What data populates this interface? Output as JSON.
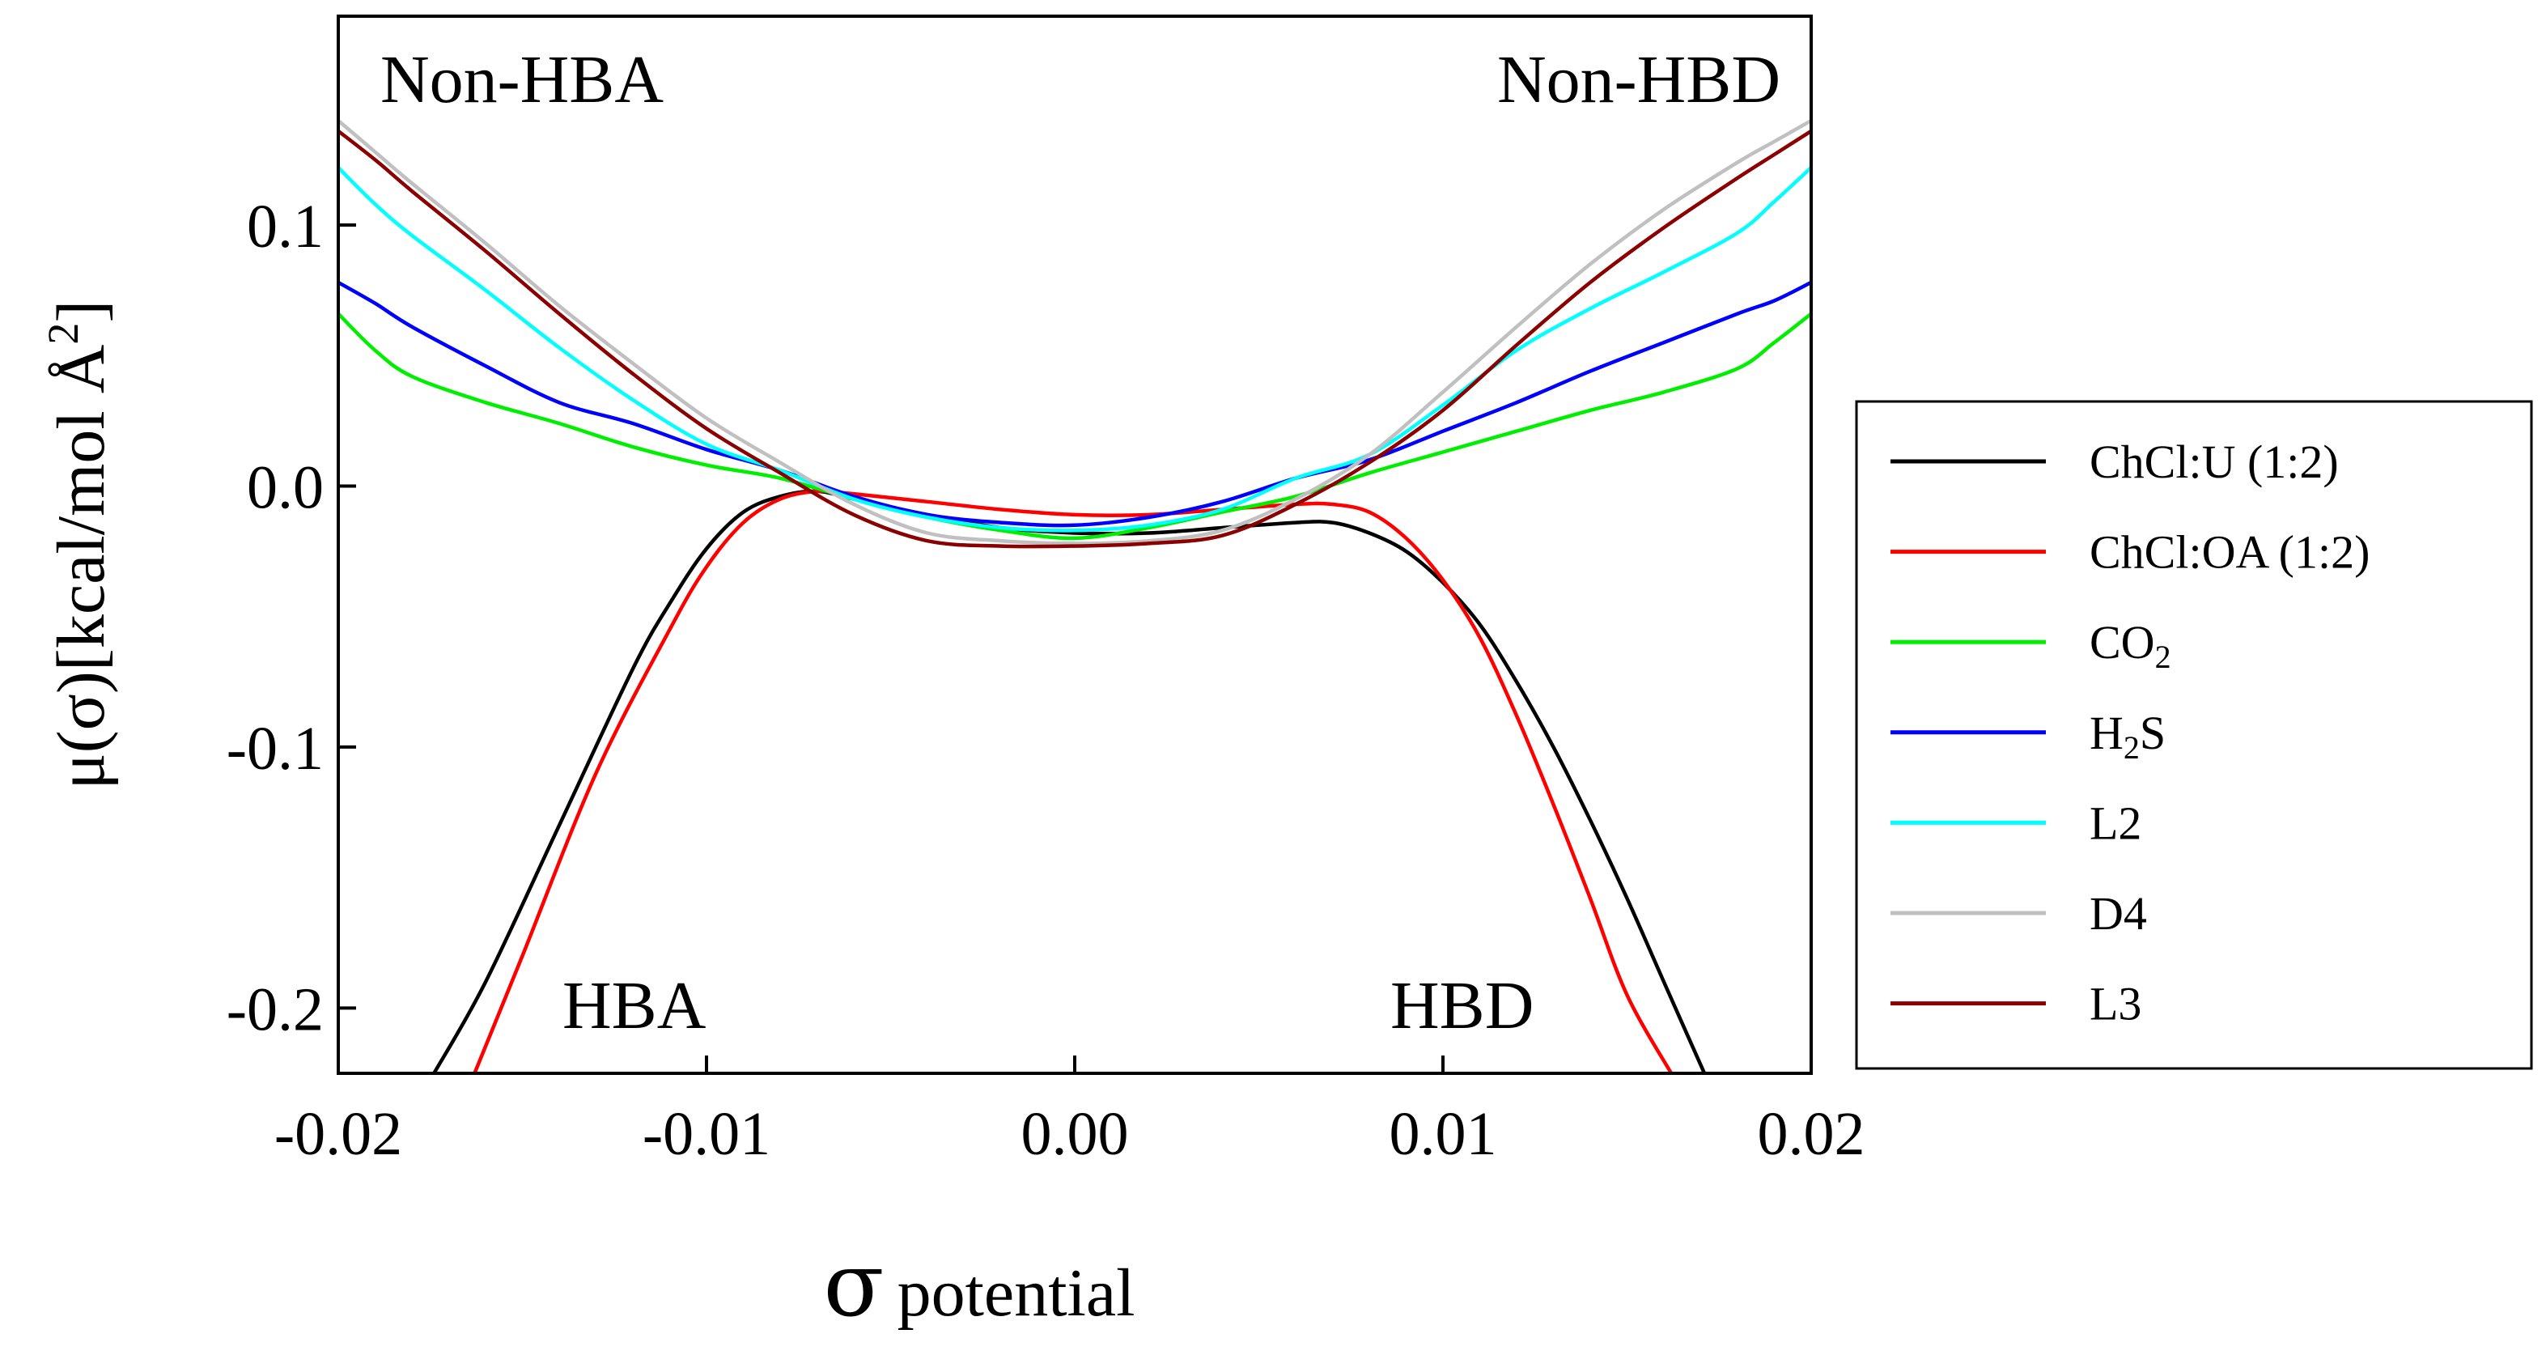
{
  "chart_data": {
    "type": "line",
    "xlabel_symbol": "σ",
    "xlabel_text": "potential",
    "ylabel": "μ(σ)[kcal/mol Å",
    "ylabel_sup": "2",
    "ylabel_close": "]",
    "xlim": [
      -0.02,
      0.02
    ],
    "ylim": [
      -0.225,
      0.18
    ],
    "xticks": [
      -0.02,
      -0.01,
      0.0,
      0.01,
      0.02
    ],
    "xtick_labels": [
      "-0.02",
      "-0.01",
      "0.00",
      "0.01",
      "0.02"
    ],
    "yticks": [
      -0.2,
      -0.1,
      0.0,
      0.1
    ],
    "ytick_labels": [
      "-0.2",
      "-0.1",
      "0.0",
      "0.1"
    ],
    "annotations": {
      "top_left": "Non-HBA",
      "top_right": "Non-HBD",
      "bottom_left": "HBA",
      "bottom_right": "HBD"
    },
    "legend": {
      "placement": "outside-right"
    },
    "series": [
      {
        "name": "ChCl:U (1:2)",
        "label_main": "ChCl:U (1:2)",
        "label_sub": "",
        "label_tail": "",
        "color": "#000000",
        "x": [
          -0.0174,
          -0.016,
          -0.014,
          -0.012,
          -0.011,
          -0.01,
          -0.009,
          -0.008,
          -0.007,
          -0.006,
          -0.004,
          -0.002,
          0.0,
          0.002,
          0.004,
          0.006,
          0.007,
          0.008,
          0.009,
          0.01,
          0.011,
          0.012,
          0.013,
          0.014,
          0.015,
          0.016,
          0.0171
        ],
        "y": [
          -0.225,
          -0.19,
          -0.13,
          -0.07,
          -0.045,
          -0.024,
          -0.01,
          -0.004,
          -0.002,
          -0.005,
          -0.011,
          -0.016,
          -0.018,
          -0.018,
          -0.016,
          -0.014,
          -0.014,
          -0.018,
          -0.025,
          -0.037,
          -0.053,
          -0.075,
          -0.1,
          -0.128,
          -0.158,
          -0.19,
          -0.225
        ]
      },
      {
        "name": "ChCl:OA (1:2)",
        "label_main": "ChCl:OA (1:2)",
        "label_sub": "",
        "label_tail": "",
        "color": "#ff0000",
        "x": [
          -0.0163,
          -0.015,
          -0.013,
          -0.011,
          -0.01,
          -0.009,
          -0.008,
          -0.007,
          -0.006,
          -0.004,
          -0.002,
          0.0,
          0.002,
          0.004,
          0.006,
          0.007,
          0.008,
          0.009,
          0.01,
          0.011,
          0.012,
          0.013,
          0.014,
          0.015,
          0.0162
        ],
        "y": [
          -0.225,
          -0.18,
          -0.11,
          -0.055,
          -0.031,
          -0.014,
          -0.005,
          -0.002,
          -0.003,
          -0.006,
          -0.009,
          -0.011,
          -0.011,
          -0.009,
          -0.007,
          -0.007,
          -0.01,
          -0.02,
          -0.036,
          -0.058,
          -0.088,
          -0.122,
          -0.158,
          -0.195,
          -0.225
        ]
      },
      {
        "name": "CO2",
        "label_main": "CO",
        "label_sub": "2",
        "label_tail": "",
        "color": "#00ee00",
        "x": [
          -0.02,
          -0.019,
          -0.018,
          -0.016,
          -0.014,
          -0.012,
          -0.01,
          -0.008,
          -0.006,
          -0.004,
          -0.002,
          0.0,
          0.002,
          0.004,
          0.006,
          0.008,
          0.01,
          0.012,
          0.014,
          0.016,
          0.018,
          0.019,
          0.02
        ],
        "y": [
          0.066,
          0.052,
          0.042,
          0.032,
          0.024,
          0.015,
          0.008,
          0.003,
          -0.005,
          -0.012,
          -0.017,
          -0.02,
          -0.016,
          -0.01,
          -0.004,
          0.005,
          0.013,
          0.021,
          0.029,
          0.036,
          0.045,
          0.055,
          0.066
        ]
      },
      {
        "name": "H2S",
        "label_main": "H",
        "label_sub": "2",
        "label_tail": "S",
        "color": "#0000ff",
        "x": [
          -0.02,
          -0.019,
          -0.018,
          -0.016,
          -0.014,
          -0.012,
          -0.01,
          -0.008,
          -0.006,
          -0.004,
          -0.002,
          0.0,
          0.002,
          0.004,
          0.006,
          0.008,
          0.01,
          0.012,
          0.014,
          0.016,
          0.018,
          0.019,
          0.02
        ],
        "y": [
          0.078,
          0.07,
          0.061,
          0.046,
          0.032,
          0.024,
          0.014,
          0.006,
          -0.004,
          -0.011,
          -0.014,
          -0.015,
          -0.012,
          -0.006,
          0.003,
          0.01,
          0.021,
          0.032,
          0.044,
          0.055,
          0.066,
          0.071,
          0.078
        ]
      },
      {
        "name": "L2",
        "label_main": "L2",
        "label_sub": "",
        "label_tail": "",
        "color": "#00ffff",
        "x": [
          -0.02,
          -0.019,
          -0.018,
          -0.016,
          -0.014,
          -0.012,
          -0.01,
          -0.008,
          -0.006,
          -0.004,
          -0.002,
          0.0,
          0.002,
          0.004,
          0.006,
          0.008,
          0.01,
          0.012,
          0.014,
          0.016,
          0.018,
          0.019,
          0.02
        ],
        "y": [
          0.122,
          0.108,
          0.096,
          0.075,
          0.053,
          0.033,
          0.016,
          0.006,
          -0.005,
          -0.012,
          -0.016,
          -0.017,
          -0.015,
          -0.009,
          0.003,
          0.012,
          0.031,
          0.052,
          0.068,
          0.082,
          0.097,
          0.109,
          0.122
        ]
      },
      {
        "name": "D4",
        "label_main": "D4",
        "label_sub": "",
        "label_tail": "",
        "color": "#c0c0c0",
        "x": [
          -0.02,
          -0.019,
          -0.018,
          -0.016,
          -0.014,
          -0.012,
          -0.01,
          -0.008,
          -0.006,
          -0.004,
          -0.002,
          0.0,
          0.002,
          0.004,
          0.006,
          0.008,
          0.01,
          0.012,
          0.014,
          0.016,
          0.018,
          0.019,
          0.02
        ],
        "y": [
          0.14,
          0.128,
          0.116,
          0.093,
          0.069,
          0.047,
          0.026,
          0.009,
          -0.007,
          -0.018,
          -0.021,
          -0.022,
          -0.021,
          -0.017,
          -0.005,
          0.012,
          0.036,
          0.061,
          0.085,
          0.106,
          0.124,
          0.132,
          0.14
        ]
      },
      {
        "name": "L3",
        "label_main": "L3",
        "label_sub": "",
        "label_tail": "",
        "color": "#8b0000",
        "x": [
          -0.02,
          -0.019,
          -0.018,
          -0.016,
          -0.014,
          -0.012,
          -0.01,
          -0.008,
          -0.006,
          -0.004,
          -0.002,
          0.0,
          0.002,
          0.004,
          0.006,
          0.008,
          0.01,
          0.012,
          0.014,
          0.016,
          0.018,
          0.019,
          0.02
        ],
        "y": [
          0.136,
          0.125,
          0.113,
          0.09,
          0.066,
          0.043,
          0.022,
          0.005,
          -0.011,
          -0.021,
          -0.023,
          -0.023,
          -0.022,
          -0.019,
          -0.007,
          0.009,
          0.029,
          0.054,
          0.078,
          0.099,
          0.118,
          0.127,
          0.136
        ]
      }
    ]
  }
}
